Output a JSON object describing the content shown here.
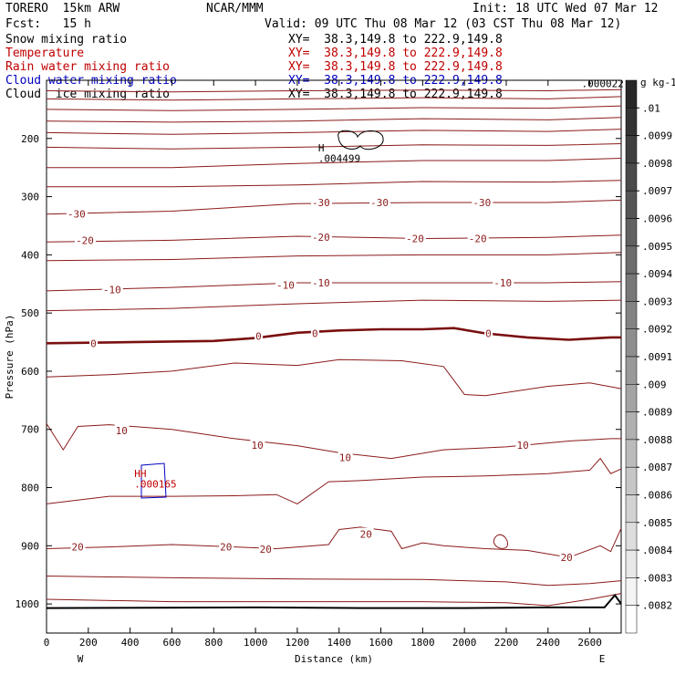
{
  "header": {
    "model": "TORERO  15km ARW",
    "center": "NCAR/MMM",
    "init": "Init: 18 UTC Wed 07 Mar 12",
    "fcst": "Fcst:   15 h",
    "valid": "Valid: 09 UTC Thu 08 Mar 12 (03 CST Thu 08 Mar 12)"
  },
  "legend": [
    {
      "label": "Snow mixing ratio",
      "xy": "XY=  38.3,149.8 to 222.9,149.8",
      "color": "#000000"
    },
    {
      "label": "Temperature",
      "xy": "XY=  38.3,149.8 to 222.9,149.8",
      "color": "#c00000"
    },
    {
      "label": "Rain water mixing ratio",
      "xy": "XY=  38.3,149.8 to 222.9,149.8",
      "color": "#c00000"
    },
    {
      "label": "Cloud water mixing ratio",
      "xy": "XY=  38.3,149.8 to 222.9,149.8",
      "color": "#0000c0"
    },
    {
      "label": "Cloud  ice mixing ratio",
      "xy": "XY=  38.3,149.8 to 222.9,149.8",
      "color": "#000000"
    }
  ],
  "chart_data": {
    "type": "contour",
    "xlabel": "Distance (km)",
    "ylabel": "Pressure (hPa)",
    "xlim": [
      0,
      2750
    ],
    "ylim": [
      1050,
      100
    ],
    "x_ticks": [
      0,
      200,
      400,
      600,
      800,
      1000,
      1200,
      1400,
      1600,
      1800,
      2000,
      2200,
      2400,
      2600
    ],
    "y_ticks": [
      200,
      300,
      400,
      500,
      600,
      700,
      800,
      900,
      1000
    ],
    "x_end_labels": {
      "left": "W",
      "right": "E"
    },
    "temperature_contour_labels": [
      {
        "text": "-30",
        "x": 100,
        "p": 330
      },
      {
        "text": "-30",
        "x": 1270,
        "p": 310
      },
      {
        "text": "-30",
        "x": 1550,
        "p": 310
      },
      {
        "text": "-30",
        "x": 2040,
        "p": 310
      },
      {
        "text": "-20",
        "x": 140,
        "p": 375
      },
      {
        "text": "-20",
        "x": 1270,
        "p": 370
      },
      {
        "text": "-20",
        "x": 1720,
        "p": 372
      },
      {
        "text": "-20",
        "x": 2020,
        "p": 372
      },
      {
        "text": "-10",
        "x": 270,
        "p": 460
      },
      {
        "text": "-10",
        "x": 1100,
        "p": 452
      },
      {
        "text": "-10",
        "x": 1270,
        "p": 448
      },
      {
        "text": "-10",
        "x": 2140,
        "p": 448
      },
      {
        "text": "0",
        "x": 210,
        "p": 552
      },
      {
        "text": "0",
        "x": 1000,
        "p": 540
      },
      {
        "text": "0",
        "x": 1270,
        "p": 535
      },
      {
        "text": "0",
        "x": 2100,
        "p": 535
      },
      {
        "text": "10",
        "x": 330,
        "p": 702
      },
      {
        "text": "10",
        "x": 980,
        "p": 727
      },
      {
        "text": "10",
        "x": 1400,
        "p": 748
      },
      {
        "text": "10",
        "x": 2250,
        "p": 727
      },
      {
        "text": "20",
        "x": 120,
        "p": 902
      },
      {
        "text": "20",
        "x": 830,
        "p": 902
      },
      {
        "text": "20",
        "x": 1020,
        "p": 906
      },
      {
        "text": "20",
        "x": 1500,
        "p": 880
      },
      {
        "text": "20",
        "x": 2460,
        "p": 920
      }
    ],
    "temperature_thick_zero": [
      [
        0,
        552
      ],
      [
        400,
        550
      ],
      [
        800,
        548
      ],
      [
        1000,
        543
      ],
      [
        1200,
        534
      ],
      [
        1400,
        530
      ],
      [
        1600,
        528
      ],
      [
        1800,
        528
      ],
      [
        1950,
        526
      ],
      [
        2100,
        535
      ],
      [
        2300,
        542
      ],
      [
        2500,
        546
      ],
      [
        2700,
        542
      ],
      [
        2750,
        542
      ]
    ],
    "temperature_contours": [
      [
        [
          0,
          118
        ],
        [
          600,
          120
        ],
        [
          1200,
          118
        ],
        [
          1800,
          117
        ],
        [
          2400,
          118
        ],
        [
          2750,
          116
        ]
      ],
      [
        [
          0,
          132
        ],
        [
          600,
          134
        ],
        [
          1200,
          132
        ],
        [
          1800,
          130
        ],
        [
          2400,
          132
        ],
        [
          2750,
          128
        ]
      ],
      [
        [
          0,
          150
        ],
        [
          600,
          152
        ],
        [
          1200,
          150
        ],
        [
          1800,
          147
        ],
        [
          2400,
          148
        ],
        [
          2750,
          144
        ]
      ],
      [
        [
          0,
          170
        ],
        [
          600,
          172
        ],
        [
          1200,
          170
        ],
        [
          1800,
          166
        ],
        [
          2400,
          168
        ],
        [
          2750,
          164
        ]
      ],
      [
        [
          0,
          190
        ],
        [
          600,
          193
        ],
        [
          1200,
          190
        ],
        [
          1800,
          186
        ],
        [
          2400,
          188
        ],
        [
          2750,
          184
        ]
      ],
      [
        [
          0,
          215
        ],
        [
          600,
          218
        ],
        [
          1200,
          215
        ],
        [
          1800,
          211
        ],
        [
          2400,
          212
        ],
        [
          2750,
          209
        ]
      ],
      [
        [
          0,
          250
        ],
        [
          600,
          250
        ],
        [
          1200,
          243
        ],
        [
          1800,
          238
        ],
        [
          2400,
          238
        ],
        [
          2750,
          234
        ]
      ],
      [
        [
          0,
          283
        ],
        [
          600,
          283
        ],
        [
          1200,
          280
        ],
        [
          1800,
          274
        ],
        [
          2400,
          275
        ],
        [
          2750,
          272
        ]
      ],
      [
        [
          0,
          330
        ],
        [
          600,
          325
        ],
        [
          1200,
          312
        ],
        [
          1800,
          310
        ],
        [
          2400,
          310
        ],
        [
          2750,
          306
        ]
      ],
      [
        [
          0,
          378
        ],
        [
          600,
          375
        ],
        [
          1200,
          368
        ],
        [
          1800,
          372
        ],
        [
          2400,
          370
        ],
        [
          2750,
          366
        ]
      ],
      [
        [
          0,
          410
        ],
        [
          600,
          408
        ],
        [
          1200,
          402
        ],
        [
          1800,
          400
        ],
        [
          2400,
          400
        ],
        [
          2750,
          396
        ]
      ],
      [
        [
          0,
          462
        ],
        [
          600,
          456
        ],
        [
          1200,
          448
        ],
        [
          1800,
          448
        ],
        [
          2400,
          448
        ],
        [
          2750,
          446
        ]
      ],
      [
        [
          0,
          496
        ],
        [
          600,
          492
        ],
        [
          1200,
          484
        ],
        [
          1800,
          478
        ],
        [
          2400,
          480
        ],
        [
          2750,
          478
        ]
      ],
      [
        [
          0,
          610
        ],
        [
          300,
          606
        ],
        [
          600,
          600
        ],
        [
          900,
          586
        ],
        [
          1200,
          590
        ],
        [
          1400,
          580
        ],
        [
          1700,
          582
        ],
        [
          1900,
          592
        ],
        [
          2000,
          640
        ],
        [
          2100,
          642
        ],
        [
          2400,
          626
        ],
        [
          2600,
          620
        ],
        [
          2750,
          630
        ]
      ],
      [
        [
          0,
          690
        ],
        [
          80,
          735
        ],
        [
          150,
          695
        ],
        [
          300,
          692
        ],
        [
          600,
          700
        ],
        [
          900,
          716
        ],
        [
          1200,
          728
        ],
        [
          1400,
          740
        ],
        [
          1650,
          750
        ],
        [
          1900,
          735
        ],
        [
          2200,
          730
        ],
        [
          2500,
          720
        ],
        [
          2700,
          716
        ],
        [
          2750,
          716
        ]
      ],
      [
        [
          0,
          828
        ],
        [
          300,
          815
        ],
        [
          600,
          815
        ],
        [
          900,
          814
        ],
        [
          1100,
          812
        ],
        [
          1200,
          828
        ],
        [
          1350,
          790
        ],
        [
          1500,
          788
        ],
        [
          1800,
          782
        ],
        [
          2100,
          780
        ],
        [
          2400,
          776
        ],
        [
          2600,
          770
        ],
        [
          2650,
          750
        ],
        [
          2700,
          776
        ],
        [
          2750,
          768
        ]
      ],
      [
        [
          0,
          905
        ],
        [
          300,
          902
        ],
        [
          600,
          898
        ],
        [
          900,
          902
        ],
        [
          1100,
          905
        ],
        [
          1350,
          898
        ],
        [
          1400,
          872
        ],
        [
          1500,
          868
        ],
        [
          1650,
          875
        ],
        [
          1700,
          905
        ],
        [
          1800,
          895
        ],
        [
          1900,
          900
        ],
        [
          2100,
          905
        ],
        [
          2300,
          908
        ],
        [
          2500,
          920
        ],
        [
          2650,
          900
        ],
        [
          2700,
          910
        ],
        [
          2750,
          870
        ]
      ],
      [
        [
          0,
          952
        ],
        [
          600,
          955
        ],
        [
          1200,
          957
        ],
        [
          1800,
          958
        ],
        [
          2200,
          962
        ],
        [
          2400,
          968
        ],
        [
          2600,
          965
        ],
        [
          2750,
          960
        ]
      ],
      [
        [
          0,
          992
        ],
        [
          600,
          996
        ],
        [
          1200,
          996
        ],
        [
          1800,
          996
        ],
        [
          2200,
          998
        ],
        [
          2400,
          1003
        ],
        [
          2600,
          992
        ],
        [
          2750,
          982
        ]
      ]
    ],
    "terrain": [
      [
        0,
        1007
      ],
      [
        1000,
        1006
      ],
      [
        1500,
        1007
      ],
      [
        2000,
        1007
      ],
      [
        2400,
        1006
      ],
      [
        2670,
        1006
      ],
      [
        2720,
        985
      ],
      [
        2750,
        1000
      ]
    ],
    "annotations": [
      {
        "text": "H",
        "x": 1300,
        "p": 222,
        "color": "#000000"
      },
      {
        "text": ".004499",
        "x": 1300,
        "p": 240,
        "color": "#000000"
      },
      {
        "text": ".000022",
        "x": 2560,
        "p": 112,
        "color": "#000000"
      },
      {
        "text": "HH",
        "x": 420,
        "p": 782,
        "color": "#c00000"
      },
      {
        "text": ".000165",
        "x": 420,
        "p": 800,
        "color": "#c00000"
      }
    ],
    "colorbar": {
      "unit": "g kg-1",
      "ticks": [
        ".01",
        ".0099",
        ".0098",
        ".0097",
        ".0096",
        ".0095",
        ".0094",
        ".0093",
        ".0092",
        ".0091",
        ".009",
        ".0089",
        ".0088",
        ".0087",
        ".0086",
        ".0085",
        ".0084",
        ".0083",
        ".0082"
      ]
    }
  }
}
